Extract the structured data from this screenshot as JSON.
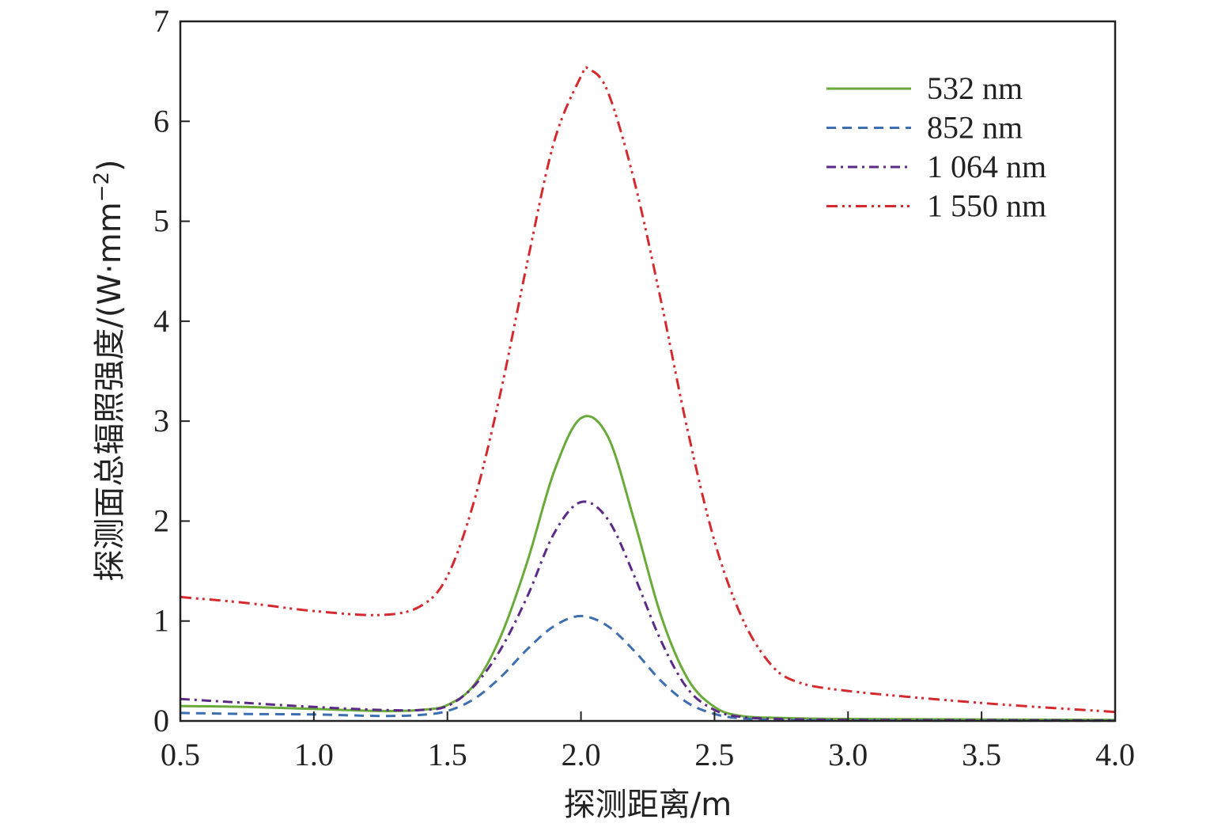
{
  "chart_data": {
    "type": "line",
    "xlabel": "探测距离/m",
    "ylabel": "探测面总辐照强度/(W·mm",
    "ylabel_sup": "−2",
    "ylabel_end": ")",
    "xlim": [
      0.5,
      4.0
    ],
    "ylim": [
      0,
      7
    ],
    "xticks": [
      0.5,
      1.0,
      1.5,
      2.0,
      2.5,
      3.0,
      3.5,
      4.0
    ],
    "xtick_labels": [
      "0.5",
      "1.0",
      "1.5",
      "2.0",
      "2.5",
      "3.0",
      "3.5",
      "4.0"
    ],
    "yticks": [
      0,
      1,
      2,
      3,
      4,
      5,
      6,
      7
    ],
    "ytick_labels": [
      "0",
      "1",
      "2",
      "3",
      "4",
      "5",
      "6",
      "7"
    ],
    "grid": false,
    "legend_position": "top-right",
    "series": [
      {
        "name": "532 nm",
        "color": "#6aaa3a",
        "dash": "solid",
        "x": [
          0.5,
          0.75,
          1.0,
          1.25,
          1.4,
          1.5,
          1.6,
          1.7,
          1.8,
          1.9,
          2.0,
          2.1,
          2.2,
          2.3,
          2.4,
          2.5,
          2.6,
          2.75,
          3.0,
          3.5,
          4.0
        ],
        "y": [
          0.15,
          0.14,
          0.12,
          0.1,
          0.11,
          0.16,
          0.36,
          0.85,
          1.6,
          2.5,
          3.03,
          2.85,
          2.0,
          1.05,
          0.42,
          0.14,
          0.05,
          0.03,
          0.02,
          0.015,
          0.01
        ]
      },
      {
        "name": "852 nm",
        "color": "#3d6fb0",
        "dash": "12,8",
        "x": [
          0.5,
          0.75,
          1.0,
          1.25,
          1.4,
          1.5,
          1.6,
          1.7,
          1.8,
          1.9,
          2.0,
          2.1,
          2.2,
          2.3,
          2.4,
          2.5,
          2.6,
          2.75,
          3.0,
          3.5,
          4.0
        ],
        "y": [
          0.08,
          0.07,
          0.065,
          0.05,
          0.06,
          0.1,
          0.22,
          0.44,
          0.72,
          0.95,
          1.05,
          0.95,
          0.7,
          0.4,
          0.18,
          0.07,
          0.025,
          0.01,
          0.005,
          0.003,
          0.002
        ]
      },
      {
        "name": "1 064 nm",
        "color": "#5b2a86",
        "dash": "12,6,3,6",
        "x": [
          0.5,
          0.75,
          1.0,
          1.25,
          1.4,
          1.5,
          1.6,
          1.7,
          1.8,
          1.9,
          2.0,
          2.1,
          2.2,
          2.3,
          2.4,
          2.5,
          2.6,
          2.75,
          3.0,
          3.5,
          4.0
        ],
        "y": [
          0.22,
          0.18,
          0.14,
          0.11,
          0.11,
          0.15,
          0.35,
          0.72,
          1.25,
          1.88,
          2.19,
          2.02,
          1.45,
          0.8,
          0.32,
          0.11,
          0.04,
          0.02,
          0.01,
          0.008,
          0.005
        ]
      },
      {
        "name": "1 550 nm",
        "color": "#d42a2f",
        "dash": "14,6,3,5,3,6",
        "x": [
          0.5,
          0.75,
          1.0,
          1.25,
          1.4,
          1.5,
          1.6,
          1.7,
          1.8,
          1.9,
          2.0,
          2.03,
          2.1,
          2.2,
          2.3,
          2.4,
          2.5,
          2.6,
          2.7,
          2.8,
          3.0,
          3.5,
          4.0
        ],
        "y": [
          1.24,
          1.18,
          1.1,
          1.06,
          1.15,
          1.45,
          2.2,
          3.3,
          4.6,
          5.8,
          6.45,
          6.52,
          6.3,
          5.4,
          4.2,
          2.9,
          1.8,
          1.05,
          0.6,
          0.4,
          0.3,
          0.18,
          0.09
        ]
      }
    ]
  }
}
